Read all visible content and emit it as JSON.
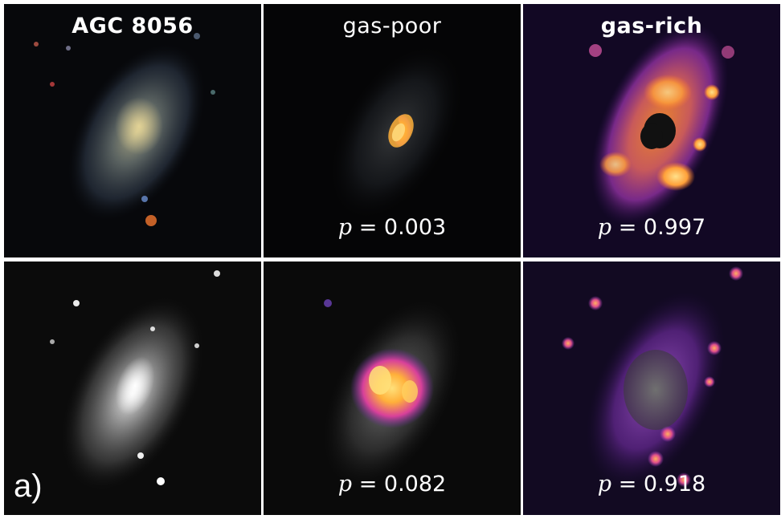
{
  "titles": {
    "galaxy": "AGC 8056",
    "gas_poor": "gas-poor",
    "gas_rich": "gas-rich"
  },
  "probabilities": {
    "row1_gas_poor": "= 0.003",
    "row1_gas_rich": "= 0.997",
    "row2_gas_poor": "= 0.082",
    "row2_gas_rich": "= 0.918"
  },
  "p_symbol": "p",
  "panel_label": "a)",
  "colors": {
    "background": "#050505",
    "saliency_hot": "#ffb03a",
    "saliency_mid": "#c2399a",
    "saliency_low": "#4a1a78",
    "divider": "#ffffff"
  }
}
